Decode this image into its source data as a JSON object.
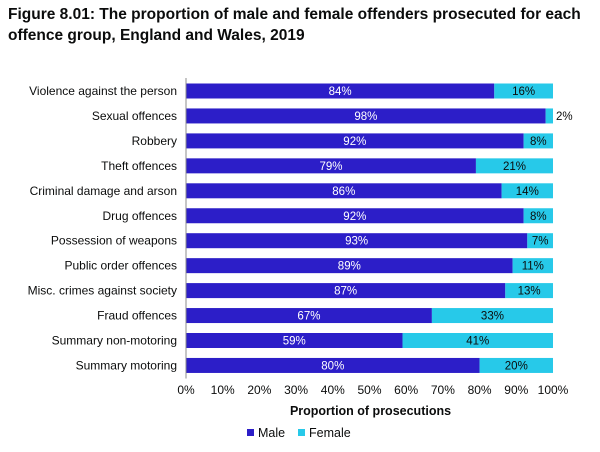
{
  "figure": {
    "title": "Figure 8.01: The proportion of male and female offenders prosecuted for each offence group, England and Wales, 2019"
  },
  "colors": {
    "male": "#2c1ec8",
    "female": "#27c9e9",
    "male_label": "#ffffff",
    "female_label": "#0b0c0c",
    "axis": "#8c8c8c"
  },
  "chart_data": {
    "type": "bar",
    "orientation": "horizontal",
    "stacked": true,
    "title": "Figure 8.01: The proportion of male and female offenders prosecuted for each offence group, England and Wales, 2019",
    "xlabel": "Proportion of prosecutions",
    "ylabel": "",
    "xlim": [
      0,
      100
    ],
    "x_ticks": [
      "0%",
      "10%",
      "20%",
      "30%",
      "40%",
      "50%",
      "60%",
      "70%",
      "80%",
      "90%",
      "100%"
    ],
    "grid": false,
    "legend_position": "bottom",
    "categories": [
      "Violence against the person",
      "Sexual offences",
      "Robbery",
      "Theft offences",
      "Criminal damage and arson",
      "Drug offences",
      "Possession of weapons",
      "Public order offences",
      "Misc. crimes against society",
      "Fraud offences",
      "Summary non-motoring",
      "Summary motoring"
    ],
    "series": [
      {
        "name": "Male",
        "values": [
          84,
          98,
          92,
          79,
          86,
          92,
          93,
          89,
          87,
          67,
          59,
          80
        ],
        "labels": [
          "84%",
          "98%",
          "92%",
          "79%",
          "86%",
          "92%",
          "93%",
          "89%",
          "87%",
          "67%",
          "59%",
          "80%"
        ]
      },
      {
        "name": "Female",
        "values": [
          16,
          2,
          8,
          21,
          14,
          8,
          7,
          11,
          13,
          33,
          41,
          20
        ],
        "labels": [
          "16%",
          "2%",
          "8%",
          "21%",
          "14%",
          "8%",
          "7%",
          "11%",
          "13%",
          "33%",
          "41%",
          "20%"
        ]
      }
    ]
  }
}
